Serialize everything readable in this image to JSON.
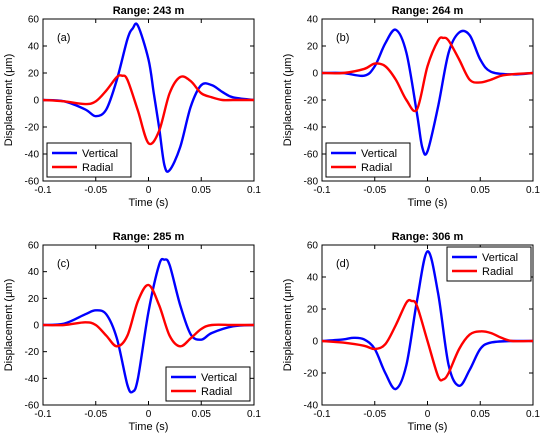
{
  "colors": {
    "vertical": "#0000ff",
    "radial": "#ff0000",
    "axis": "#000000",
    "background": "#ffffff"
  },
  "chart_data": [
    {
      "type": "line",
      "panel_label": "(a)",
      "title": "Range: 243 m",
      "xlabel": "Time (s)",
      "ylabel": "Displacement (μm)",
      "xlim": [
        -0.1,
        0.1
      ],
      "ylim": [
        -60,
        60
      ],
      "xticks": [
        -0.1,
        -0.05,
        0,
        0.05,
        0.1
      ],
      "xtick_labels": [
        "-0.1",
        "-0.05",
        "0",
        "0.05",
        "0.1"
      ],
      "yticks": [
        -60,
        -40,
        -20,
        0,
        20,
        40,
        60
      ],
      "ytick_labels": [
        "-60",
        "-40",
        "-20",
        "0",
        "20",
        "40",
        "60"
      ],
      "legend_position": "bottom-left",
      "series": [
        {
          "name": "Vertical",
          "color": "#0000ff",
          "x": [
            -0.1,
            -0.08,
            -0.06,
            -0.05,
            -0.04,
            -0.03,
            -0.02,
            -0.015,
            -0.01,
            0,
            0.005,
            0.01,
            0.015,
            0.02,
            0.03,
            0.04,
            0.05,
            0.06,
            0.07,
            0.08,
            0.1
          ],
          "y": [
            0,
            -1,
            -7,
            -12,
            -7,
            15,
            45,
            53,
            55,
            30,
            5,
            -20,
            -48,
            -52,
            -35,
            -5,
            11,
            11,
            6,
            2,
            0
          ]
        },
        {
          "name": "Radial",
          "color": "#ff0000",
          "x": [
            -0.1,
            -0.08,
            -0.06,
            -0.05,
            -0.04,
            -0.03,
            -0.025,
            -0.02,
            -0.01,
            0,
            0.01,
            0.02,
            0.03,
            0.04,
            0.05,
            0.06,
            0.07,
            0.08,
            0.1
          ],
          "y": [
            0,
            -1,
            -3,
            -1,
            7,
            17,
            18,
            15,
            -8,
            -32,
            -23,
            5,
            17,
            14,
            5,
            2,
            0,
            0,
            0
          ]
        }
      ]
    },
    {
      "type": "line",
      "panel_label": "(b)",
      "title": "Range: 264 m",
      "xlabel": "Time (s)",
      "ylabel": "Displacement (μm)",
      "xlim": [
        -0.1,
        0.1
      ],
      "ylim": [
        -80,
        40
      ],
      "xticks": [
        -0.1,
        -0.05,
        0,
        0.05,
        0.1
      ],
      "xtick_labels": [
        "-0.1",
        "-0.05",
        "0",
        "0.05",
        "0.1"
      ],
      "yticks": [
        -80,
        -60,
        -40,
        -20,
        0,
        20,
        40
      ],
      "ytick_labels": [
        "-80",
        "-60",
        "-40",
        "-20",
        "0",
        "20",
        "40"
      ],
      "legend_position": "bottom-left",
      "series": [
        {
          "name": "Vertical",
          "color": "#0000ff",
          "x": [
            -0.1,
            -0.08,
            -0.06,
            -0.05,
            -0.04,
            -0.03,
            -0.02,
            -0.01,
            -0.005,
            0,
            0.01,
            0.02,
            0.03,
            0.04,
            0.05,
            0.06,
            0.08,
            0.1
          ],
          "y": [
            0,
            0,
            -2,
            5,
            22,
            32,
            15,
            -30,
            -55,
            -58,
            -25,
            15,
            30,
            28,
            10,
            1,
            -1,
            0
          ]
        },
        {
          "name": "Radial",
          "color": "#ff0000",
          "x": [
            -0.1,
            -0.08,
            -0.06,
            -0.05,
            -0.04,
            -0.03,
            -0.02,
            -0.01,
            0,
            0.01,
            0.015,
            0.02,
            0.03,
            0.04,
            0.05,
            0.06,
            0.07,
            0.08,
            0.1
          ],
          "y": [
            0,
            0,
            3,
            7,
            5,
            -5,
            -20,
            -27,
            5,
            24,
            26,
            24,
            10,
            -5,
            -7,
            -5,
            -2,
            -1,
            0
          ]
        }
      ]
    },
    {
      "type": "line",
      "panel_label": "(c)",
      "title": "Range: 285 m",
      "xlabel": "Time (s)",
      "ylabel": "Displacement (μm)",
      "xlim": [
        -0.1,
        0.1
      ],
      "ylim": [
        -60,
        60
      ],
      "xticks": [
        -0.1,
        -0.05,
        0,
        0.05,
        0.1
      ],
      "xtick_labels": [
        "-0.1",
        "-0.05",
        "0",
        "0.05",
        "0.1"
      ],
      "yticks": [
        -60,
        -40,
        -20,
        0,
        20,
        40,
        60
      ],
      "ytick_labels": [
        "-60",
        "-40",
        "-20",
        "0",
        "20",
        "40",
        "60"
      ],
      "legend_position": "bottom-right",
      "series": [
        {
          "name": "Vertical",
          "color": "#0000ff",
          "x": [
            -0.1,
            -0.08,
            -0.06,
            -0.05,
            -0.04,
            -0.03,
            -0.02,
            -0.015,
            -0.01,
            0,
            0.01,
            0.015,
            0.02,
            0.03,
            0.04,
            0.05,
            0.06,
            0.08,
            0.1
          ],
          "y": [
            0,
            1,
            8,
            11,
            8,
            -10,
            -45,
            -50,
            -40,
            10,
            45,
            49,
            45,
            15,
            -7,
            -11,
            -6,
            -1,
            0
          ]
        },
        {
          "name": "Radial",
          "color": "#ff0000",
          "x": [
            -0.1,
            -0.08,
            -0.06,
            -0.05,
            -0.04,
            -0.03,
            -0.02,
            -0.01,
            0,
            0.01,
            0.02,
            0.03,
            0.04,
            0.05,
            0.06,
            0.08,
            0.1
          ],
          "y": [
            0,
            0,
            2,
            0,
            -8,
            -16,
            -8,
            18,
            30,
            15,
            -8,
            -16,
            -10,
            -3,
            0,
            0,
            0
          ]
        }
      ]
    },
    {
      "type": "line",
      "panel_label": "(d)",
      "title": "Range: 306 m",
      "xlabel": "Time (s)",
      "ylabel": "Displacement (μm)",
      "xlim": [
        -0.1,
        0.1
      ],
      "ylim": [
        -40,
        60
      ],
      "xticks": [
        -0.1,
        -0.05,
        0,
        0.05,
        0.1
      ],
      "xtick_labels": [
        "-0.1",
        "-0.05",
        "0",
        "0.05",
        "0.1"
      ],
      "yticks": [
        -40,
        -20,
        0,
        20,
        40,
        60
      ],
      "ytick_labels": [
        "-40",
        "-20",
        "0",
        "20",
        "40",
        "60"
      ],
      "legend_position": "top-right",
      "series": [
        {
          "name": "Vertical",
          "color": "#0000ff",
          "x": [
            -0.1,
            -0.08,
            -0.07,
            -0.06,
            -0.05,
            -0.04,
            -0.03,
            -0.02,
            -0.01,
            0,
            0.01,
            0.02,
            0.03,
            0.04,
            0.05,
            0.06,
            0.08,
            0.1
          ],
          "y": [
            0,
            1,
            2,
            1,
            -5,
            -20,
            -30,
            -15,
            25,
            56,
            30,
            -15,
            -28,
            -18,
            -5,
            -1,
            0,
            0
          ]
        },
        {
          "name": "Radial",
          "color": "#ff0000",
          "x": [
            -0.1,
            -0.08,
            -0.06,
            -0.05,
            -0.04,
            -0.03,
            -0.02,
            -0.015,
            -0.01,
            0,
            0.01,
            0.015,
            0.02,
            0.03,
            0.04,
            0.05,
            0.06,
            0.07,
            0.08,
            0.1
          ],
          "y": [
            0,
            -1,
            -3,
            -5,
            -2,
            10,
            24,
            25,
            22,
            0,
            -22,
            -24,
            -20,
            -5,
            4,
            6,
            5,
            2,
            0,
            0
          ]
        }
      ]
    }
  ]
}
